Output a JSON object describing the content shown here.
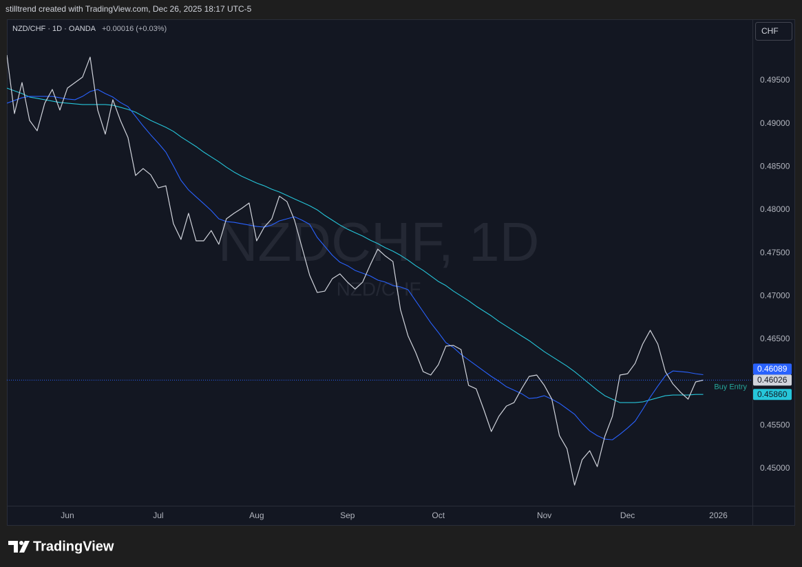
{
  "header": "stilltrend created with TradingView.com, Dec 26, 2025 18:17 UTC-5",
  "brand": "TradingView",
  "chart_data": {
    "type": "line",
    "title": "NZD/CHF · 1D · OANDA",
    "change": "+0.00016 (+0.03%)",
    "watermark": "NZDCHF, 1D",
    "watermark_subtitle": "NZD/CHF",
    "currency": "CHF",
    "annotation": {
      "text": "Buy Entry",
      "color": "#26a69a"
    },
    "price_line_color": "#2962ff",
    "grid": false,
    "ylim": [
      0.44569,
      0.5021
    ],
    "yticks": [
      {
        "value": 0.45,
        "label": "0.45000"
      },
      {
        "value": 0.455,
        "label": "0.45500"
      },
      {
        "value": 0.46,
        "label": "0.46000"
      },
      {
        "value": 0.465,
        "label": "0.46500"
      },
      {
        "value": 0.47,
        "label": "0.47000"
      },
      {
        "value": 0.475,
        "label": "0.47500"
      },
      {
        "value": 0.48,
        "label": "0.48000"
      },
      {
        "value": 0.485,
        "label": "0.48500"
      },
      {
        "value": 0.49,
        "label": "0.49000"
      },
      {
        "value": 0.495,
        "label": "0.49500"
      }
    ],
    "categories": [
      null,
      null,
      null,
      null,
      null,
      null,
      null,
      null,
      "Jun",
      null,
      null,
      null,
      null,
      null,
      null,
      null,
      null,
      null,
      null,
      null,
      "Jul",
      null,
      null,
      null,
      null,
      null,
      null,
      null,
      null,
      null,
      null,
      null,
      null,
      "Aug",
      null,
      null,
      null,
      null,
      null,
      null,
      null,
      null,
      null,
      null,
      null,
      "Sep",
      null,
      null,
      null,
      null,
      null,
      null,
      null,
      null,
      null,
      null,
      null,
      "Oct",
      null,
      null,
      null,
      null,
      null,
      null,
      null,
      null,
      null,
      null,
      null,
      null,
      null,
      "Nov",
      null,
      null,
      null,
      null,
      null,
      null,
      null,
      null,
      null,
      null,
      "Dec",
      null,
      null,
      null,
      null,
      null,
      null,
      null,
      null,
      null,
      null,
      null,
      "2026"
    ],
    "series": [
      {
        "color": "#d1d4dc",
        "price_label": "0.46026",
        "values": [
          0.49795,
          0.49117,
          0.49476,
          0.49037,
          0.48917,
          0.49237,
          0.49396,
          0.49157,
          0.49412,
          0.49476,
          0.4954,
          0.49771,
          0.49157,
          0.48878,
          0.49277,
          0.49037,
          0.48838,
          0.48399,
          0.48479,
          0.48407,
          0.48255,
          0.48279,
          0.4784,
          0.47657,
          0.4796,
          0.47641,
          0.47641,
          0.4776,
          0.47601,
          0.47896,
          0.4796,
          0.48016,
          0.4808,
          0.47641,
          0.478,
          0.47896,
          0.48159,
          0.48096,
          0.4788,
          0.47561,
          0.47242,
          0.47042,
          0.47058,
          0.47202,
          0.47258,
          0.47162,
          0.47082,
          0.47162,
          0.47361,
          0.47545,
          0.47465,
          0.47401,
          0.46843,
          0.46539,
          0.46348,
          0.46124,
          0.46085,
          0.46204,
          0.4642,
          0.46428,
          0.4638,
          0.45965,
          0.45925,
          0.45686,
          0.4543,
          0.45606,
          0.45725,
          0.45765,
          0.45925,
          0.46069,
          0.46085,
          0.45965,
          0.45805,
          0.45382,
          0.45231,
          0.44808,
          0.45103,
          0.45207,
          0.45023,
          0.45374,
          0.45606,
          0.46085,
          0.461,
          0.4622,
          0.46444,
          0.46603,
          0.46444,
          0.46124,
          0.45981,
          0.45885,
          0.45805,
          0.46005,
          0.46026,
          null,
          null
        ]
      },
      {
        "color": "#2962ff",
        "price_label": "0.46089",
        "values": [
          0.49237,
          0.49269,
          0.493,
          0.49316,
          0.49316,
          0.49316,
          0.49316,
          0.493,
          0.49285,
          0.49277,
          0.49316,
          0.49372,
          0.49396,
          0.49348,
          0.49308,
          0.49245,
          0.49197,
          0.49085,
          0.48973,
          0.4887,
          0.48774,
          0.4867,
          0.4851,
          0.48343,
          0.48231,
          0.48151,
          0.48072,
          0.47992,
          0.47896,
          0.47864,
          0.47856,
          0.4784,
          0.47824,
          0.47808,
          0.478,
          0.47824,
          0.47872,
          0.47896,
          0.4792,
          0.4788,
          0.47832,
          0.47681,
          0.47577,
          0.47473,
          0.47393,
          0.47353,
          0.47298,
          0.47266,
          0.47234,
          0.47186,
          0.47162,
          0.47122,
          0.47106,
          0.47074,
          0.46946,
          0.46819,
          0.46691,
          0.46579,
          0.4646,
          0.46404,
          0.46324,
          0.4626,
          0.46196,
          0.46132,
          0.46069,
          0.46013,
          0.45949,
          0.45909,
          0.45869,
          0.45813,
          0.45821,
          0.45845,
          0.45805,
          0.45757,
          0.45694,
          0.4563,
          0.45526,
          0.45438,
          0.45382,
          0.45342,
          0.45334,
          0.45398,
          0.4547,
          0.4555,
          0.45686,
          0.45829,
          0.45957,
          0.46077,
          0.46132,
          0.46124,
          0.46116,
          0.461,
          0.46089,
          null,
          null
        ]
      },
      {
        "color": "#26c6da",
        "price_label": "0.45860",
        "values": [
          0.49412,
          0.4938,
          0.49348,
          0.49308,
          0.49293,
          0.49277,
          0.49261,
          0.49245,
          0.49237,
          0.49229,
          0.49221,
          0.49221,
          0.49221,
          0.49221,
          0.49213,
          0.49189,
          0.49165,
          0.49133,
          0.49085,
          0.49037,
          0.48997,
          0.48957,
          0.4891,
          0.48846,
          0.4879,
          0.48734,
          0.4867,
          0.48614,
          0.48558,
          0.48495,
          0.48439,
          0.48391,
          0.48351,
          0.48311,
          0.48279,
          0.48239,
          0.48207,
          0.48167,
          0.48127,
          0.48088,
          0.48048,
          0.48,
          0.47936,
          0.4788,
          0.47824,
          0.47776,
          0.47736,
          0.47697,
          0.47649,
          0.47609,
          0.47561,
          0.47521,
          0.47473,
          0.47417,
          0.47353,
          0.47298,
          0.47234,
          0.4717,
          0.47122,
          0.47058,
          0.47002,
          0.46946,
          0.46883,
          0.46827,
          0.46771,
          0.46707,
          0.46651,
          0.46595,
          0.46539,
          0.46484,
          0.4642,
          0.46356,
          0.463,
          0.46244,
          0.46188,
          0.46124,
          0.46053,
          0.45981,
          0.45909,
          0.45845,
          0.45805,
          0.45765,
          0.45765,
          0.45765,
          0.45773,
          0.45797,
          0.45821,
          0.45845,
          0.45853,
          0.45853,
          0.45853,
          0.4586,
          0.4586,
          null,
          null
        ]
      }
    ]
  }
}
